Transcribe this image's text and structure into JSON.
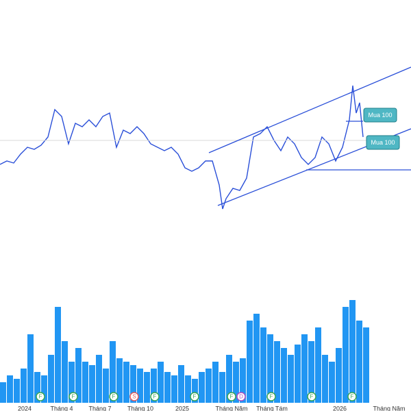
{
  "chart_data": [
    {
      "type": "line",
      "color": "#2a4fd8",
      "x": [
        0,
        10,
        20,
        30,
        40,
        50,
        60,
        70,
        80,
        90,
        100,
        110,
        120,
        130,
        140,
        150,
        160,
        170,
        180,
        190,
        200,
        210,
        220,
        230,
        240,
        250,
        260,
        270,
        280,
        290,
        300,
        310,
        320,
        325,
        330,
        340,
        350,
        360,
        370,
        380,
        390,
        400,
        410,
        420,
        430,
        440,
        450,
        460,
        470,
        480,
        490,
        500,
        510,
        515,
        520,
        525,
        530
      ],
      "values": [
        160,
        165,
        162,
        175,
        185,
        182,
        188,
        200,
        240,
        230,
        190,
        220,
        215,
        225,
        215,
        230,
        235,
        185,
        210,
        205,
        215,
        205,
        190,
        185,
        180,
        185,
        175,
        155,
        150,
        155,
        165,
        165,
        130,
        95,
        110,
        125,
        122,
        140,
        200,
        205,
        215,
        195,
        180,
        200,
        190,
        170,
        160,
        170,
        200,
        190,
        165,
        185,
        225,
        275,
        235,
        250,
        200
      ],
      "xlim": [
        0,
        600
      ],
      "ylim": [
        0,
        400
      ],
      "xticks": [
        {
          "value": 36,
          "label": "2024"
        },
        {
          "value": 90,
          "label": "Tháng 4"
        },
        {
          "value": 146,
          "label": "Tháng 7"
        },
        {
          "value": 205,
          "label": "Tháng 10"
        },
        {
          "value": 266,
          "label": "2025"
        },
        {
          "value": 338,
          "label": "Tháng Năm"
        },
        {
          "value": 397,
          "label": "Tháng Tám"
        },
        {
          "value": 496,
          "label": "2026"
        },
        {
          "value": 568,
          "label": "Tháng Năm"
        }
      ],
      "annotations": [
        "Mua 100",
        "Mua 100"
      ]
    },
    {
      "type": "bar",
      "color": "#2196f3",
      "x": [
        0,
        10,
        20,
        30,
        40,
        50,
        60,
        70,
        80,
        90,
        100,
        110,
        120,
        130,
        140,
        150,
        160,
        170,
        180,
        190,
        200,
        210,
        220,
        230,
        240,
        250,
        260,
        270,
        280,
        290,
        300,
        310,
        320,
        330,
        340,
        350,
        360,
        370,
        380,
        390,
        400,
        410,
        420,
        430,
        440,
        450,
        460,
        470,
        480,
        490,
        500,
        510,
        520,
        530
      ],
      "values": [
        30,
        40,
        35,
        50,
        100,
        45,
        40,
        70,
        140,
        90,
        60,
        80,
        60,
        55,
        70,
        50,
        90,
        65,
        60,
        55,
        50,
        45,
        50,
        60,
        45,
        40,
        55,
        40,
        35,
        45,
        50,
        60,
        45,
        70,
        60,
        65,
        120,
        130,
        110,
        100,
        90,
        80,
        70,
        85,
        100,
        90,
        110,
        70,
        60,
        80,
        140,
        150,
        120,
        110
      ],
      "xlim": [
        0,
        600
      ],
      "ylim": [
        0,
        160
      ],
      "events": [
        {
          "x": 59,
          "label": "F"
        },
        {
          "x": 107,
          "label": "F"
        },
        {
          "x": 166,
          "label": "F"
        },
        {
          "x": 196,
          "label": "S"
        },
        {
          "x": 226,
          "label": "F"
        },
        {
          "x": 284,
          "label": "F"
        },
        {
          "x": 338,
          "label": "F"
        },
        {
          "x": 352,
          "label": "D"
        },
        {
          "x": 396,
          "label": "F"
        },
        {
          "x": 455,
          "label": "F"
        },
        {
          "x": 514,
          "label": "F"
        }
      ]
    }
  ]
}
